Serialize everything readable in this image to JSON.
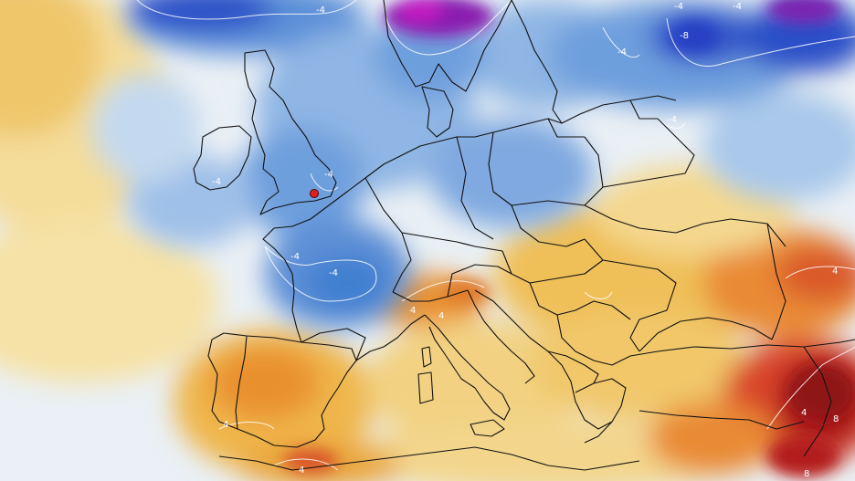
{
  "map": {
    "colors": {
      "deep_purple": "#8a1fb0",
      "dark_blue": "#2b4fc7",
      "blue": "#3f7fd0",
      "light_blue": "#a9c8ea",
      "pale": "#e8f0f7",
      "light_yellow": "#f6e2a6",
      "yellow": "#efc15a",
      "orange": "#e9902f",
      "red": "#d9422a",
      "dark_red": "#a8181b",
      "border": "#111111",
      "marker": "#e02020"
    },
    "marker": {
      "name": "location-marker",
      "place": "London"
    },
    "contour_labels": [
      {
        "id": "nn-4",
        "text": "-4"
      },
      {
        "id": "ne-4",
        "text": "-4"
      },
      {
        "id": "ne-8",
        "text": "-8"
      },
      {
        "id": "scan-4",
        "text": "-4"
      },
      {
        "id": "scand2-4",
        "text": "-4"
      },
      {
        "id": "ire-4",
        "text": "-4"
      },
      {
        "id": "eng-4",
        "text": "-4"
      },
      {
        "id": "fr-4",
        "text": "-4"
      },
      {
        "id": "fr2-4",
        "text": "-4"
      },
      {
        "id": "it-4",
        "text": "4"
      },
      {
        "id": "it2-4",
        "text": "4"
      },
      {
        "id": "ru-4",
        "text": "4"
      },
      {
        "id": "es-4",
        "text": "4"
      },
      {
        "id": "tr-4",
        "text": "4"
      },
      {
        "id": "tr-8",
        "text": "8"
      },
      {
        "id": "me-8",
        "text": "8"
      },
      {
        "id": "af-4",
        "text": "4"
      },
      {
        "id": "ua-4",
        "text": "-4"
      }
    ]
  }
}
